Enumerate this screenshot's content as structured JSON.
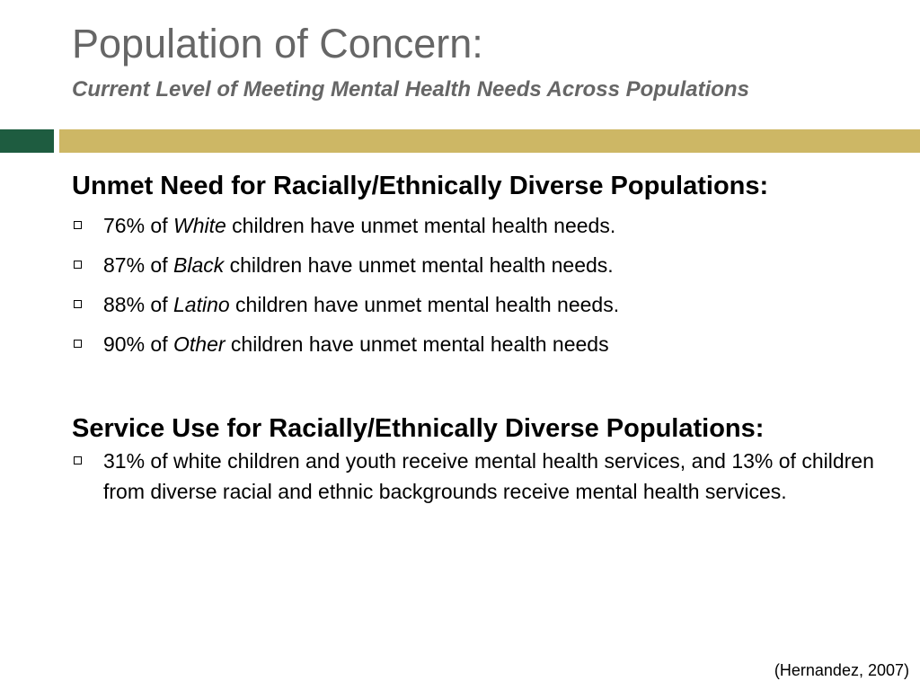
{
  "title": "Population of Concern:",
  "subtitle": "Current Level of Meeting Mental Health Needs Across Populations",
  "colors": {
    "title": "#666666",
    "band_green": "#1e5c40",
    "band_gold": "#cdb765"
  },
  "unmet_need": {
    "heading": "Unmet Need for Racially/Ethnically Diverse Populations:",
    "items": [
      {
        "prefix": "76% of ",
        "group": "White",
        "suffix": " children have unmet mental health needs."
      },
      {
        "prefix": "87% of ",
        "group": "Black",
        "suffix": " children have unmet mental health needs."
      },
      {
        "prefix": "88% of ",
        "group": "Latino",
        "suffix": " children have unmet mental health needs."
      },
      {
        "prefix": "90% of ",
        "group": "Other",
        "suffix": " children have unmet mental health needs"
      }
    ]
  },
  "service_use": {
    "heading": "Service Use for Racially/Ethnically Diverse Populations:",
    "items": [
      {
        "text": "31% of white children and youth receive mental health services, and 13% of children from diverse racial and ethnic backgrounds receive mental health services."
      }
    ]
  },
  "citation": "(Hernandez, 2007)"
}
